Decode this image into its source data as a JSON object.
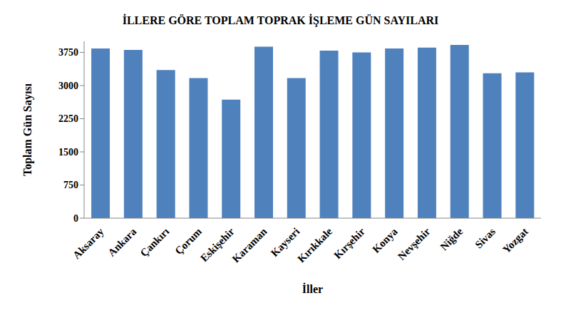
{
  "chart_data": {
    "type": "bar",
    "title": "İLLERE GÖRE TOPLAM TOPRAK İŞLEME GÜN SAYILARI",
    "x_label": "İller",
    "y_label": "Toplam Gün Sayısı",
    "categories": [
      "Aksaray",
      "Ankara",
      "Çankırı",
      "Çorum",
      "Eskişehir",
      "Karaman",
      "Kayseri",
      "Kırıkkale",
      "Kırşehir",
      "Konya",
      "Nevşehir",
      "Niğde",
      "Sivas",
      "Yozgat"
    ],
    "values": [
      3840,
      3805,
      3350,
      3170,
      2680,
      3880,
      3170,
      3790,
      3750,
      3840,
      3860,
      3920,
      3280,
      3300
    ],
    "color": "#4f81bd",
    "ylim": [
      0,
      4000
    ],
    "yticks": [
      0,
      750,
      1500,
      2250,
      3000,
      3750
    ],
    "grid": false
  }
}
